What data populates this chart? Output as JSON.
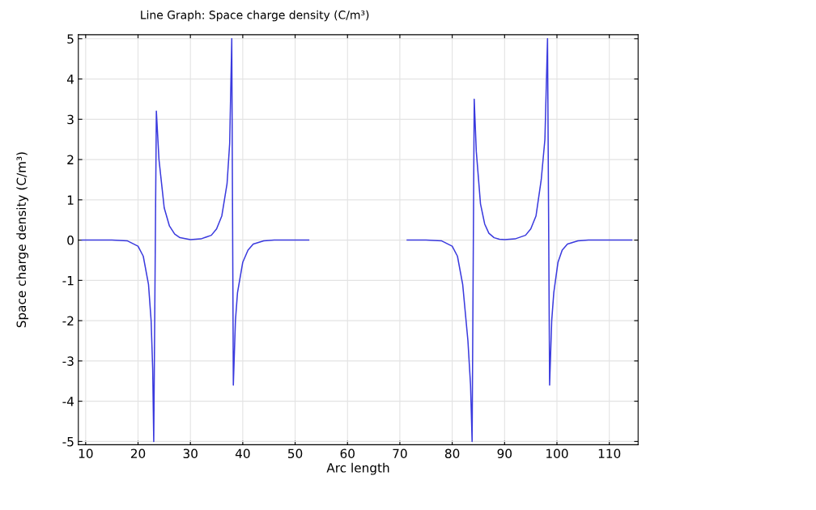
{
  "chart_data": {
    "type": "line",
    "title": "Line Graph: Space charge density (C/m³)",
    "xlabel": "Arc length",
    "ylabel": "Space charge density (C/m³)",
    "xlim": [
      8.6,
      115.5
    ],
    "ylim": [
      -5.08,
      5.1
    ],
    "xticks": [
      10,
      20,
      30,
      40,
      50,
      60,
      70,
      80,
      90,
      100,
      110
    ],
    "yticks": [
      -5,
      -4,
      -3,
      -2,
      -1,
      0,
      1,
      2,
      3,
      4,
      5
    ],
    "grid": true,
    "marker": "none",
    "line_style": "solid",
    "series": [
      {
        "color": "#3a3ade",
        "x": [
          9.3,
          15,
          18,
          20,
          21,
          22,
          22.5,
          22.8,
          23.0,
          23.5,
          24,
          25,
          26,
          27,
          28,
          30,
          32,
          34,
          35,
          36,
          37,
          37.5,
          37.9,
          38.2,
          38.6,
          39,
          40,
          41,
          42,
          44,
          46,
          52.6,
          52.7,
          71.4,
          75,
          78,
          80,
          81,
          82,
          83,
          83.5,
          83.8,
          84.2,
          84.6,
          85.4,
          86.2,
          87,
          88,
          89,
          90,
          92,
          94,
          95,
          96,
          97,
          97.7,
          98.2,
          98.6,
          99,
          99.4,
          100.2,
          101,
          102,
          104,
          106,
          114.3
        ],
        "values": [
          0,
          0,
          -0.02,
          -0.15,
          -0.4,
          -1.1,
          -2.0,
          -3.2,
          -5.0,
          3.2,
          2.0,
          0.8,
          0.35,
          0.15,
          0.06,
          0.01,
          0.03,
          0.12,
          0.28,
          0.6,
          1.4,
          2.4,
          5.0,
          -3.6,
          -2.0,
          -1.3,
          -0.55,
          -0.25,
          -0.1,
          -0.02,
          0,
          0,
          null,
          0,
          0,
          -0.02,
          -0.15,
          -0.4,
          -1.1,
          -2.5,
          -3.6,
          -5.0,
          3.5,
          2.2,
          0.9,
          0.4,
          0.17,
          0.06,
          0.02,
          0.01,
          0.03,
          0.12,
          0.28,
          0.6,
          1.5,
          2.5,
          5.0,
          -3.6,
          -2.0,
          -1.3,
          -0.55,
          -0.25,
          -0.1,
          -0.02,
          0,
          0
        ]
      }
    ]
  }
}
